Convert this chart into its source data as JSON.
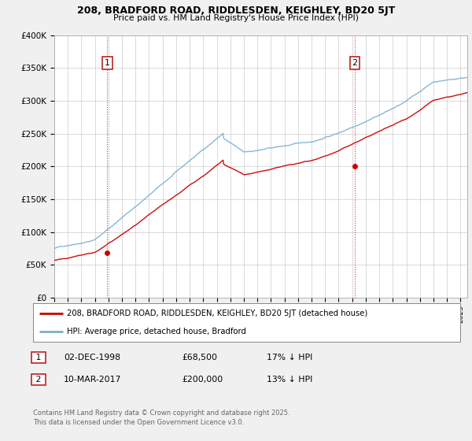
{
  "title": "208, BRADFORD ROAD, RIDDLESDEN, KEIGHLEY, BD20 5JT",
  "subtitle": "Price paid vs. HM Land Registry's House Price Index (HPI)",
  "ylabel_ticks": [
    "£0",
    "£50K",
    "£100K",
    "£150K",
    "£200K",
    "£250K",
    "£300K",
    "£350K",
    "£400K"
  ],
  "ylim": [
    0,
    400000
  ],
  "xlim_start": 1995.0,
  "xlim_end": 2025.5,
  "sale1_date": 1998.92,
  "sale1_price": 68500,
  "sale1_label": "1",
  "sale2_date": 2017.19,
  "sale2_price": 200000,
  "sale2_label": "2",
  "legend_line1": "208, BRADFORD ROAD, RIDDLESDEN, KEIGHLEY, BD20 5JT (detached house)",
  "legend_line2": "HPI: Average price, detached house, Bradford",
  "footer": "Contains HM Land Registry data © Crown copyright and database right 2025.\nThis data is licensed under the Open Government Licence v3.0.",
  "color_red": "#cc0000",
  "color_blue": "#7aafcf",
  "background_color": "#f0f0f0",
  "plot_background": "#ffffff",
  "grid_color": "#cccccc",
  "ann1_date": "02-DEC-1998",
  "ann1_price": "£68,500",
  "ann1_hpi": "17% ↓ HPI",
  "ann2_date": "10-MAR-2017",
  "ann2_price": "£200,000",
  "ann2_hpi": "13% ↓ HPI"
}
